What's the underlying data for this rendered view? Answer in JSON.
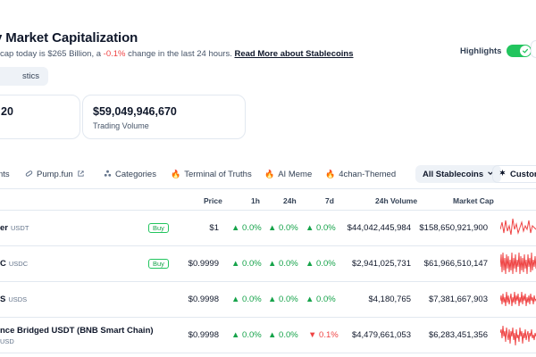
{
  "header": {
    "title": "y Market Capitalization",
    "subtitle_prefix": "cap today is $265 Billion, a ",
    "subtitle_change": "-0.1%",
    "subtitle_suffix": " change in the last 24 hours. ",
    "read_more": "Read More about Stablecoins",
    "statistics_button": "stics",
    "highlights_label": "Highlights"
  },
  "cards": [
    {
      "value": "20",
      "label": ""
    },
    {
      "value": "$59,049,946,670",
      "label": "Trading Volume"
    }
  ],
  "filters": {
    "items": [
      "nts",
      "Pump.fun",
      "Categories",
      "Terminal of Truths",
      "AI Meme",
      "4chan-Themed"
    ],
    "select_label": "All Stablecoins",
    "customize_label": "Customi"
  },
  "table": {
    "columns": [
      "Price",
      "1h",
      "24h",
      "7d",
      "24h Volume",
      "Market Cap"
    ],
    "buy_label": "Buy",
    "rows": [
      {
        "name": "er",
        "symbol": "USDT",
        "buy": true,
        "price": "$1",
        "h1": "0.0%",
        "h24": "0.0%",
        "d7": "0.0%",
        "d7_dir": "up",
        "volume": "$44,042,445,984",
        "mcap": "$158,650,921,900"
      },
      {
        "name": "C",
        "symbol": "USDC",
        "buy": true,
        "price": "$0.9999",
        "h1": "0.0%",
        "h24": "0.0%",
        "d7": "0.0%",
        "d7_dir": "up",
        "volume": "$2,941,025,731",
        "mcap": "$61,966,510,147"
      },
      {
        "name": "S",
        "symbol": "USDS",
        "buy": false,
        "price": "$0.9998",
        "h1": "0.0%",
        "h24": "0.0%",
        "d7": "0.0%",
        "d7_dir": "up",
        "volume": "$4,180,765",
        "mcap": "$7,381,667,903"
      },
      {
        "name": "nce Bridged USDT (BNB Smart Chain)",
        "symbol": "USD",
        "buy": false,
        "price": "$0.9998",
        "h1": "0.0%",
        "h24": "0.0%",
        "d7": "0.1%",
        "d7_dir": "down",
        "volume": "$4,479,661,053",
        "mcap": "$6,283,451,356"
      }
    ]
  },
  "colors": {
    "positive": "#16a34a",
    "negative": "#ef4444",
    "toggle_on": "#22c55e"
  },
  "icons": [
    "checkmark-icon",
    "external-link-icon",
    "categories-icon",
    "fire-icon",
    "settings-icon",
    "chevron-down-icon",
    "up-arrow-icon",
    "down-arrow-icon"
  ]
}
